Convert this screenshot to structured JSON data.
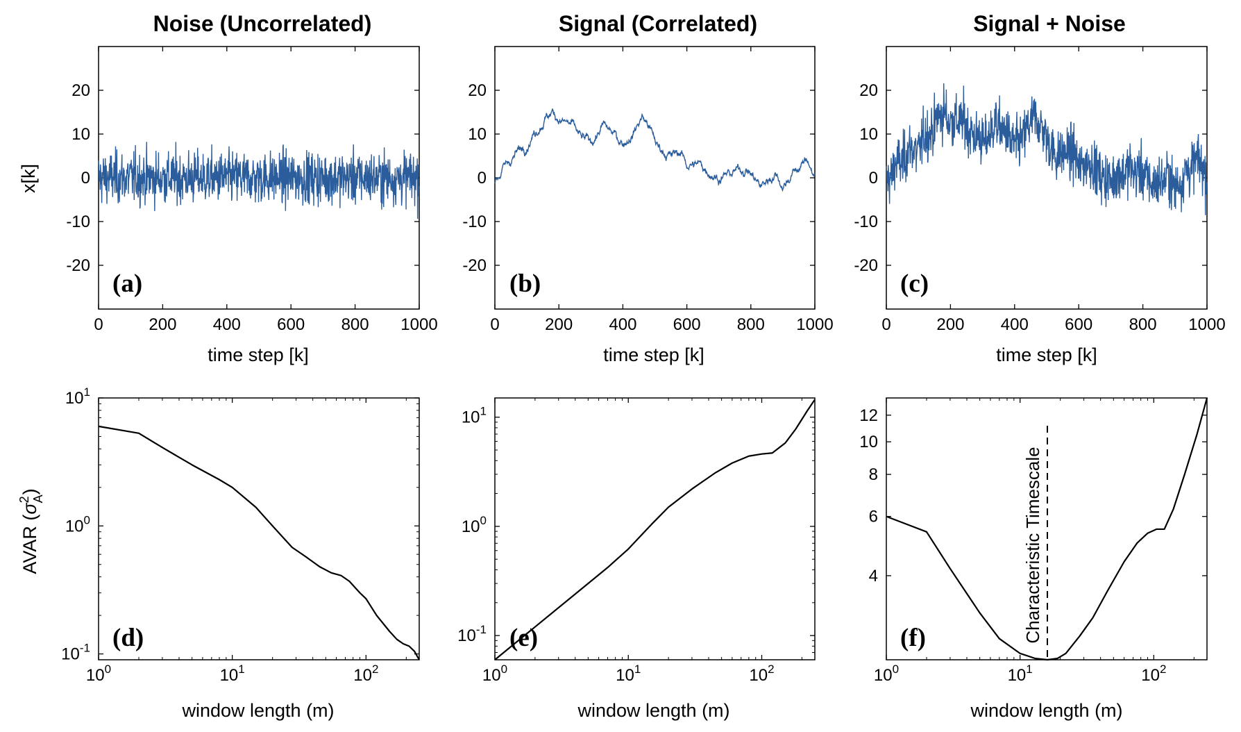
{
  "colors": {
    "series": "#2b5d9c",
    "axis": "#000000",
    "curve": "#000000"
  },
  "column_titles": [
    "Noise (Uncorrelated)",
    "Signal (Correlated)",
    "Signal + Noise"
  ],
  "shared_labels": {
    "ts_xlabel": "time step [k]",
    "ts_ylabel": "x[k]",
    "avar_xlabel": "window length (m)",
    "avar_ylabel_main": "AVAR (",
    "avar_ylabel_sigma": "σ",
    "avar_ylabel_sup": "2",
    "avar_ylabel_sub": "A",
    "avar_ylabel_close": ")"
  },
  "annotation": "Characteristic Timescale",
  "chart_data": [
    {
      "id": "a",
      "panel_label": "(a)",
      "type": "line",
      "title": "Noise (Uncorrelated)",
      "xlabel": "time step [k]",
      "ylabel": "x[k]",
      "xlim": [
        0,
        1000
      ],
      "ylim": [
        -30,
        30
      ],
      "xticks": [
        0,
        200,
        400,
        600,
        800,
        1000
      ],
      "yticks": [
        -20,
        -10,
        0,
        10,
        20
      ],
      "series_desc": "uncorrelated white noise, mean ~0, range about -14 to 15",
      "anchor": [
        [
          0,
          0
        ],
        [
          1000,
          0
        ]
      ]
    },
    {
      "id": "b",
      "panel_label": "(b)",
      "type": "line",
      "title": "Signal (Correlated)",
      "xlabel": "time step [k]",
      "ylabel": "",
      "xlim": [
        0,
        1000
      ],
      "ylim": [
        -30,
        30
      ],
      "xticks": [
        0,
        200,
        400,
        600,
        800,
        1000
      ],
      "yticks": [
        -20,
        -10,
        0,
        10,
        20
      ],
      "anchor": [
        [
          0,
          -1
        ],
        [
          25,
          2
        ],
        [
          60,
          5
        ],
        [
          100,
          8
        ],
        [
          130,
          11
        ],
        [
          160,
          14
        ],
        [
          180,
          15
        ],
        [
          210,
          13
        ],
        [
          240,
          12
        ],
        [
          270,
          9
        ],
        [
          300,
          8
        ],
        [
          340,
          12
        ],
        [
          370,
          10
        ],
        [
          400,
          8
        ],
        [
          430,
          10
        ],
        [
          460,
          14
        ],
        [
          480,
          12
        ],
        [
          510,
          7
        ],
        [
          550,
          5
        ],
        [
          580,
          6
        ],
        [
          600,
          3
        ],
        [
          640,
          3
        ],
        [
          660,
          2
        ],
        [
          700,
          0
        ],
        [
          740,
          1
        ],
        [
          770,
          2
        ],
        [
          790,
          2
        ],
        [
          810,
          0
        ],
        [
          830,
          -2
        ],
        [
          860,
          0
        ],
        [
          880,
          1
        ],
        [
          900,
          -2
        ],
        [
          930,
          1
        ],
        [
          960,
          3
        ],
        [
          980,
          4
        ],
        [
          1000,
          0
        ]
      ]
    },
    {
      "id": "c",
      "panel_label": "(c)",
      "type": "line",
      "title": "Signal + Noise",
      "xlabel": "time step [k]",
      "ylabel": "",
      "xlim": [
        0,
        1000
      ],
      "ylim": [
        -30,
        30
      ],
      "xticks": [
        0,
        200,
        400,
        600,
        800,
        1000
      ],
      "yticks": [
        -20,
        -10,
        0,
        10,
        20
      ],
      "series_desc": "sum of (a) and (b)",
      "anchor": [
        [
          0,
          -1
        ],
        [
          25,
          2
        ],
        [
          60,
          5
        ],
        [
          100,
          8
        ],
        [
          130,
          11
        ],
        [
          160,
          14
        ],
        [
          180,
          15
        ],
        [
          210,
          13
        ],
        [
          240,
          12
        ],
        [
          270,
          9
        ],
        [
          300,
          8
        ],
        [
          340,
          12
        ],
        [
          370,
          10
        ],
        [
          400,
          8
        ],
        [
          430,
          10
        ],
        [
          460,
          14
        ],
        [
          480,
          12
        ],
        [
          510,
          7
        ],
        [
          550,
          5
        ],
        [
          580,
          6
        ],
        [
          600,
          3
        ],
        [
          640,
          3
        ],
        [
          660,
          2
        ],
        [
          700,
          0
        ],
        [
          740,
          1
        ],
        [
          770,
          2
        ],
        [
          790,
          2
        ],
        [
          810,
          0
        ],
        [
          830,
          -2
        ],
        [
          860,
          0
        ],
        [
          880,
          1
        ],
        [
          900,
          -2
        ],
        [
          930,
          1
        ],
        [
          960,
          3
        ],
        [
          980,
          4
        ],
        [
          1000,
          0
        ]
      ]
    },
    {
      "id": "d",
      "panel_label": "(d)",
      "type": "line",
      "scale": "log-log",
      "title": "",
      "xlabel": "window length (m)",
      "ylabel": "AVAR (σ²_A)",
      "xlim": [
        1,
        250
      ],
      "ylim": [
        0.09,
        10
      ],
      "xticks": [
        1,
        10,
        100
      ],
      "xtick_bases": [
        "10",
        "10",
        "10"
      ],
      "xtick_exps": [
        "0",
        "1",
        "2"
      ],
      "yticks": [
        0.1,
        1,
        10
      ],
      "ytick_bases": [
        "10",
        "10",
        "10"
      ],
      "ytick_exps": [
        "-1",
        "0",
        "1"
      ],
      "x": [
        1,
        2,
        3,
        5,
        8,
        10,
        15,
        20,
        28,
        35,
        45,
        55,
        65,
        75,
        90,
        100,
        120,
        150,
        170,
        190,
        210,
        230,
        250
      ],
      "y": [
        6.0,
        5.3,
        4.1,
        3.0,
        2.3,
        2.0,
        1.4,
        1.0,
        0.68,
        0.58,
        0.48,
        0.43,
        0.41,
        0.37,
        0.3,
        0.27,
        0.2,
        0.15,
        0.13,
        0.12,
        0.115,
        0.105,
        0.09
      ]
    },
    {
      "id": "e",
      "panel_label": "(e)",
      "type": "line",
      "scale": "log-log",
      "title": "",
      "xlabel": "window length (m)",
      "ylabel": "",
      "xlim": [
        1,
        250
      ],
      "ylim": [
        0.06,
        15
      ],
      "xticks": [
        1,
        10,
        100
      ],
      "xtick_bases": [
        "10",
        "10",
        "10"
      ],
      "xtick_exps": [
        "0",
        "1",
        "2"
      ],
      "yticks": [
        0.1,
        1,
        10
      ],
      "ytick_bases": [
        "10",
        "10",
        "10"
      ],
      "ytick_exps": [
        "-1",
        "0",
        "1"
      ],
      "x": [
        1,
        2,
        4,
        7,
        10,
        15,
        20,
        30,
        45,
        60,
        80,
        100,
        120,
        150,
        180,
        220,
        250
      ],
      "y": [
        0.06,
        0.12,
        0.24,
        0.42,
        0.62,
        1.05,
        1.5,
        2.2,
        3.1,
        3.8,
        4.4,
        4.6,
        4.7,
        5.8,
        7.8,
        11.5,
        14.5
      ]
    },
    {
      "id": "f",
      "panel_label": "(f)",
      "type": "line",
      "scale": "log-log",
      "title": "",
      "xlabel": "window length (m)",
      "ylabel": "",
      "xlim": [
        1,
        250
      ],
      "ylim": [
        2.25,
        13.5
      ],
      "xticks": [
        1,
        10,
        100
      ],
      "xtick_bases": [
        "10",
        "10",
        "10"
      ],
      "xtick_exps": [
        "0",
        "1",
        "2"
      ],
      "yticks": [
        4,
        6,
        8,
        10,
        12
      ],
      "ytick_labels": [
        "4",
        "6",
        "8",
        "10",
        "12"
      ],
      "x": [
        1,
        2,
        3,
        5,
        7,
        10,
        13,
        16,
        19,
        22,
        28,
        35,
        45,
        60,
        75,
        90,
        105,
        120,
        140,
        170,
        210,
        250
      ],
      "y": [
        6.0,
        5.4,
        4.2,
        3.1,
        2.6,
        2.35,
        2.27,
        2.25,
        2.27,
        2.35,
        2.65,
        3.0,
        3.6,
        4.4,
        5.0,
        5.35,
        5.5,
        5.5,
        6.3,
        8.0,
        10.5,
        13.5
      ],
      "vline": {
        "x": 16,
        "style": "dashed",
        "label": "Characteristic Timescale"
      }
    }
  ]
}
